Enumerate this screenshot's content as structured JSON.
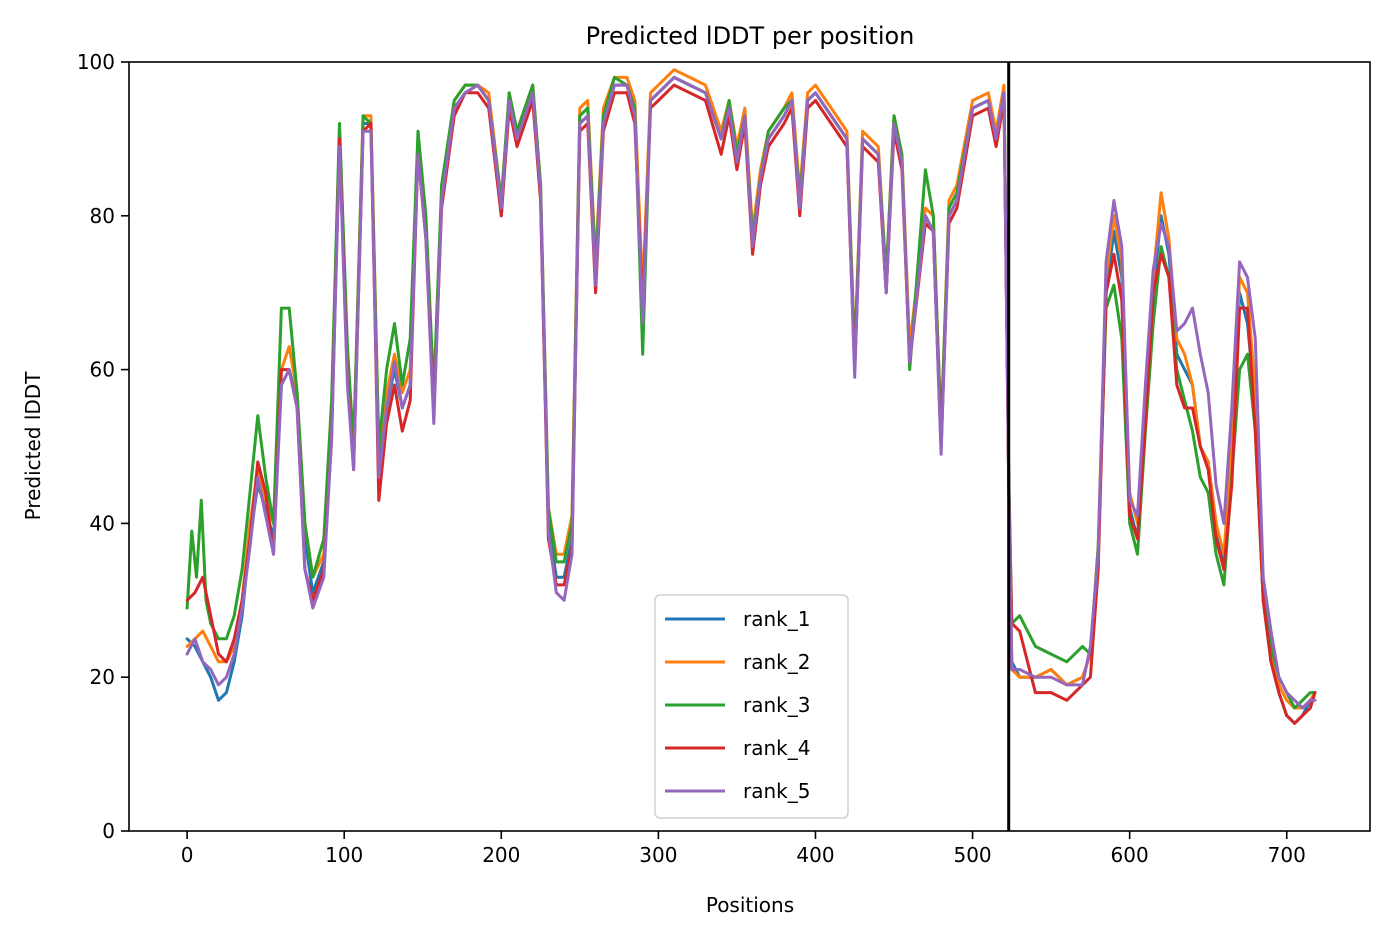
{
  "chart_data": {
    "type": "line",
    "title": "Predicted lDDT per position",
    "xlabel": "Positions",
    "ylabel": "Predicted lDDT",
    "xlim": [
      -37,
      753
    ],
    "ylim": [
      0,
      100
    ],
    "xticks": [
      0,
      100,
      200,
      300,
      400,
      500,
      600,
      700
    ],
    "yticks": [
      0,
      20,
      40,
      60,
      80,
      100
    ],
    "grid": false,
    "legend_position": "lower center",
    "chain_break_x": 523,
    "series": [
      {
        "name": "rank_1",
        "color": "#1f77b4",
        "x": [
          0,
          5,
          10,
          15,
          20,
          25,
          30,
          35,
          40,
          45,
          50,
          55,
          60,
          65,
          70,
          75,
          80,
          87,
          92,
          97,
          102,
          106,
          112,
          117,
          122,
          127,
          132,
          137,
          142,
          147,
          152,
          157,
          162,
          170,
          177,
          185,
          192,
          200,
          205,
          210,
          220,
          225,
          230,
          235,
          240,
          245,
          250,
          255,
          260,
          265,
          272,
          280,
          285,
          290,
          295,
          300,
          310,
          320,
          330,
          340,
          345,
          350,
          355,
          360,
          365,
          370,
          380,
          385,
          390,
          395,
          400,
          410,
          420,
          425,
          430,
          440,
          445,
          450,
          455,
          460,
          470,
          475,
          480,
          485,
          490,
          500,
          510,
          515,
          520,
          523,
          525,
          530,
          540,
          550,
          560,
          570,
          575,
          580,
          585,
          590,
          595,
          600,
          605,
          610,
          615,
          620,
          625,
          630,
          635,
          640,
          645,
          650,
          655,
          660,
          665,
          670,
          675,
          680,
          685,
          690,
          695,
          700,
          705,
          710,
          715,
          718
        ],
        "y": [
          25,
          24,
          22,
          20,
          17,
          18,
          22,
          28,
          38,
          45,
          42,
          38,
          58,
          60,
          56,
          38,
          31,
          35,
          52,
          90,
          60,
          48,
          92,
          92,
          47,
          55,
          60,
          55,
          58,
          89,
          78,
          55,
          82,
          94,
          96,
          97,
          95,
          80,
          95,
          90,
          96,
          82,
          40,
          33,
          33,
          38,
          92,
          93,
          72,
          92,
          97,
          97,
          93,
          68,
          95,
          96,
          98,
          97,
          96,
          90,
          94,
          88,
          93,
          77,
          85,
          90,
          93,
          95,
          82,
          95,
          96,
          93,
          90,
          60,
          90,
          88,
          70,
          92,
          87,
          62,
          80,
          78,
          50,
          80,
          82,
          94,
          95,
          90,
          96,
          45,
          22,
          20,
          20,
          21,
          19,
          20,
          23,
          36,
          70,
          78,
          72,
          42,
          38,
          55,
          70,
          80,
          75,
          62,
          60,
          58,
          50,
          48,
          40,
          34,
          48,
          70,
          66,
          55,
          30,
          22,
          18,
          15,
          14,
          15,
          17,
          18
        ]
      },
      {
        "name": "rank_2",
        "color": "#ff7f0e",
        "x": [
          0,
          5,
          10,
          15,
          20,
          25,
          30,
          35,
          40,
          45,
          50,
          55,
          60,
          65,
          70,
          75,
          80,
          87,
          92,
          97,
          102,
          106,
          112,
          117,
          122,
          127,
          132,
          137,
          142,
          147,
          152,
          157,
          162,
          170,
          177,
          185,
          192,
          200,
          205,
          210,
          220,
          225,
          230,
          235,
          240,
          245,
          250,
          255,
          260,
          265,
          272,
          280,
          285,
          290,
          295,
          300,
          310,
          320,
          330,
          340,
          345,
          350,
          355,
          360,
          365,
          370,
          380,
          385,
          390,
          395,
          400,
          410,
          420,
          425,
          430,
          440,
          445,
          450,
          455,
          460,
          470,
          475,
          480,
          485,
          490,
          500,
          510,
          515,
          520,
          523,
          525,
          530,
          540,
          550,
          560,
          570,
          575,
          580,
          585,
          590,
          595,
          600,
          605,
          610,
          615,
          620,
          625,
          630,
          635,
          640,
          645,
          650,
          655,
          660,
          665,
          670,
          675,
          680,
          685,
          690,
          695,
          700,
          705,
          710,
          715,
          718
        ],
        "y": [
          24,
          25,
          26,
          24,
          22,
          22,
          24,
          30,
          40,
          47,
          43,
          40,
          60,
          63,
          57,
          40,
          33,
          36,
          53,
          91,
          62,
          50,
          93,
          93,
          50,
          57,
          62,
          57,
          60,
          90,
          79,
          56,
          83,
          95,
          97,
          97,
          96,
          82,
          96,
          91,
          97,
          84,
          42,
          36,
          36,
          41,
          94,
          95,
          74,
          94,
          98,
          98,
          95,
          70,
          96,
          97,
          99,
          98,
          97,
          91,
          95,
          89,
          94,
          78,
          86,
          91,
          94,
          96,
          83,
          96,
          97,
          94,
          91,
          62,
          91,
          89,
          72,
          93,
          88,
          63,
          81,
          80,
          52,
          82,
          84,
          95,
          96,
          91,
          97,
          47,
          21,
          20,
          20,
          21,
          19,
          20,
          23,
          37,
          72,
          80,
          74,
          44,
          40,
          57,
          72,
          83,
          77,
          64,
          62,
          58,
          50,
          48,
          40,
          36,
          50,
          72,
          70,
          57,
          32,
          23,
          19,
          17,
          16,
          16,
          17,
          18
        ]
      },
      {
        "name": "rank_3",
        "color": "#2ca02c",
        "x": [
          0,
          3,
          6,
          9,
          12,
          15,
          20,
          25,
          30,
          35,
          40,
          45,
          50,
          55,
          60,
          65,
          70,
          75,
          80,
          87,
          92,
          97,
          102,
          106,
          112,
          117,
          122,
          127,
          132,
          137,
          142,
          147,
          152,
          157,
          162,
          170,
          177,
          185,
          192,
          200,
          205,
          210,
          220,
          225,
          230,
          235,
          240,
          245,
          250,
          255,
          260,
          265,
          272,
          280,
          285,
          290,
          295,
          300,
          310,
          320,
          330,
          340,
          345,
          350,
          355,
          360,
          365,
          370,
          380,
          385,
          390,
          395,
          400,
          410,
          420,
          425,
          430,
          440,
          445,
          450,
          455,
          460,
          470,
          475,
          480,
          485,
          490,
          500,
          510,
          515,
          520,
          523,
          525,
          530,
          540,
          550,
          560,
          570,
          575,
          580,
          585,
          590,
          595,
          600,
          605,
          610,
          615,
          620,
          625,
          630,
          635,
          640,
          645,
          650,
          655,
          660,
          665,
          670,
          675,
          680,
          685,
          690,
          695,
          700,
          705,
          710,
          715,
          718
        ],
        "y": [
          29,
          39,
          33,
          43,
          30,
          27,
          25,
          25,
          28,
          34,
          44,
          54,
          46,
          40,
          68,
          68,
          57,
          40,
          33,
          38,
          56,
          92,
          63,
          50,
          93,
          92,
          50,
          60,
          66,
          58,
          64,
          91,
          80,
          57,
          84,
          95,
          97,
          97,
          95,
          82,
          96,
          91,
          97,
          84,
          42,
          35,
          35,
          40,
          93,
          94,
          73,
          93,
          98,
          97,
          94,
          62,
          95,
          96,
          98,
          97,
          96,
          90,
          95,
          88,
          93,
          77,
          85,
          91,
          94,
          95,
          82,
          95,
          96,
          93,
          90,
          62,
          90,
          88,
          72,
          93,
          88,
          60,
          86,
          80,
          52,
          81,
          83,
          94,
          95,
          90,
          96,
          47,
          27,
          28,
          24,
          23,
          22,
          24,
          23,
          37,
          68,
          71,
          64,
          40,
          36,
          52,
          66,
          76,
          72,
          60,
          56,
          52,
          46,
          44,
          36,
          32,
          46,
          60,
          62,
          52,
          30,
          24,
          20,
          18,
          16,
          17,
          18,
          18
        ]
      },
      {
        "name": "rank_4",
        "color": "#d62728",
        "x": [
          0,
          5,
          10,
          15,
          20,
          25,
          30,
          35,
          40,
          45,
          50,
          55,
          60,
          65,
          70,
          75,
          80,
          87,
          92,
          97,
          102,
          106,
          112,
          117,
          122,
          127,
          132,
          137,
          142,
          147,
          152,
          157,
          162,
          170,
          177,
          185,
          192,
          200,
          205,
          210,
          220,
          225,
          230,
          235,
          240,
          245,
          250,
          255,
          260,
          265,
          272,
          280,
          285,
          290,
          295,
          300,
          310,
          320,
          330,
          340,
          345,
          350,
          355,
          360,
          365,
          370,
          380,
          385,
          390,
          395,
          400,
          410,
          420,
          425,
          430,
          440,
          445,
          450,
          455,
          460,
          470,
          475,
          480,
          485,
          490,
          500,
          510,
          515,
          520,
          523,
          525,
          530,
          540,
          550,
          560,
          570,
          575,
          580,
          585,
          590,
          595,
          600,
          605,
          610,
          615,
          620,
          625,
          630,
          635,
          640,
          645,
          650,
          655,
          660,
          665,
          670,
          675,
          680,
          685,
          690,
          695,
          700,
          705,
          710,
          715,
          718
        ],
        "y": [
          30,
          31,
          33,
          28,
          23,
          22,
          25,
          30,
          38,
          48,
          44,
          36,
          60,
          60,
          55,
          34,
          30,
          34,
          51,
          90,
          59,
          47,
          91,
          92,
          43,
          53,
          58,
          52,
          56,
          88,
          77,
          54,
          81,
          93,
          96,
          96,
          94,
          80,
          94,
          89,
          95,
          82,
          38,
          32,
          32,
          37,
          91,
          92,
          70,
          91,
          96,
          96,
          92,
          68,
          94,
          95,
          97,
          96,
          95,
          88,
          93,
          86,
          92,
          75,
          84,
          89,
          92,
          94,
          80,
          94,
          95,
          92,
          89,
          60,
          89,
          87,
          70,
          91,
          86,
          61,
          79,
          78,
          50,
          79,
          81,
          93,
          94,
          89,
          95,
          45,
          27,
          26,
          18,
          18,
          17,
          19,
          20,
          34,
          70,
          75,
          69,
          41,
          38,
          53,
          70,
          75,
          72,
          58,
          55,
          55,
          50,
          47,
          38,
          34,
          45,
          68,
          68,
          52,
          30,
          22,
          18,
          15,
          14,
          15,
          16,
          18
        ]
      },
      {
        "name": "rank_5",
        "color": "#9467bd",
        "x": [
          0,
          5,
          10,
          15,
          20,
          25,
          30,
          35,
          40,
          45,
          50,
          55,
          60,
          65,
          70,
          75,
          80,
          87,
          92,
          97,
          102,
          106,
          112,
          117,
          122,
          127,
          132,
          137,
          142,
          147,
          152,
          157,
          162,
          170,
          177,
          185,
          192,
          200,
          205,
          210,
          220,
          225,
          230,
          235,
          240,
          245,
          250,
          255,
          260,
          265,
          272,
          280,
          285,
          290,
          295,
          300,
          310,
          320,
          330,
          340,
          345,
          350,
          355,
          360,
          365,
          370,
          380,
          385,
          390,
          395,
          400,
          410,
          420,
          425,
          430,
          440,
          445,
          450,
          455,
          460,
          470,
          475,
          480,
          485,
          490,
          500,
          510,
          515,
          520,
          523,
          525,
          530,
          540,
          550,
          560,
          570,
          575,
          580,
          585,
          590,
          595,
          600,
          605,
          610,
          615,
          620,
          625,
          630,
          635,
          640,
          645,
          650,
          655,
          660,
          665,
          670,
          675,
          680,
          685,
          690,
          695,
          700,
          705,
          710,
          715,
          718
        ],
        "y": [
          23,
          25,
          22,
          21,
          19,
          20,
          23,
          29,
          37,
          46,
          41,
          36,
          58,
          60,
          55,
          34,
          29,
          33,
          51,
          89,
          58,
          47,
          91,
          91,
          46,
          55,
          61,
          55,
          58,
          88,
          77,
          53,
          82,
          94,
          96,
          97,
          95,
          81,
          95,
          90,
          96,
          83,
          39,
          31,
          30,
          36,
          92,
          93,
          71,
          92,
          97,
          97,
          93,
          66,
          95,
          96,
          98,
          97,
          96,
          90,
          94,
          87,
          93,
          76,
          85,
          90,
          93,
          95,
          81,
          95,
          96,
          93,
          90,
          59,
          90,
          88,
          70,
          92,
          87,
          61,
          80,
          78,
          49,
          80,
          82,
          94,
          95,
          90,
          96,
          46,
          21,
          21,
          20,
          20,
          19,
          19,
          24,
          36,
          74,
          82,
          76,
          43,
          41,
          58,
          73,
          79,
          76,
          65,
          66,
          68,
          62,
          57,
          45,
          40,
          55,
          74,
          72,
          64,
          33,
          26,
          20,
          18,
          17,
          16,
          17,
          17
        ]
      }
    ]
  }
}
